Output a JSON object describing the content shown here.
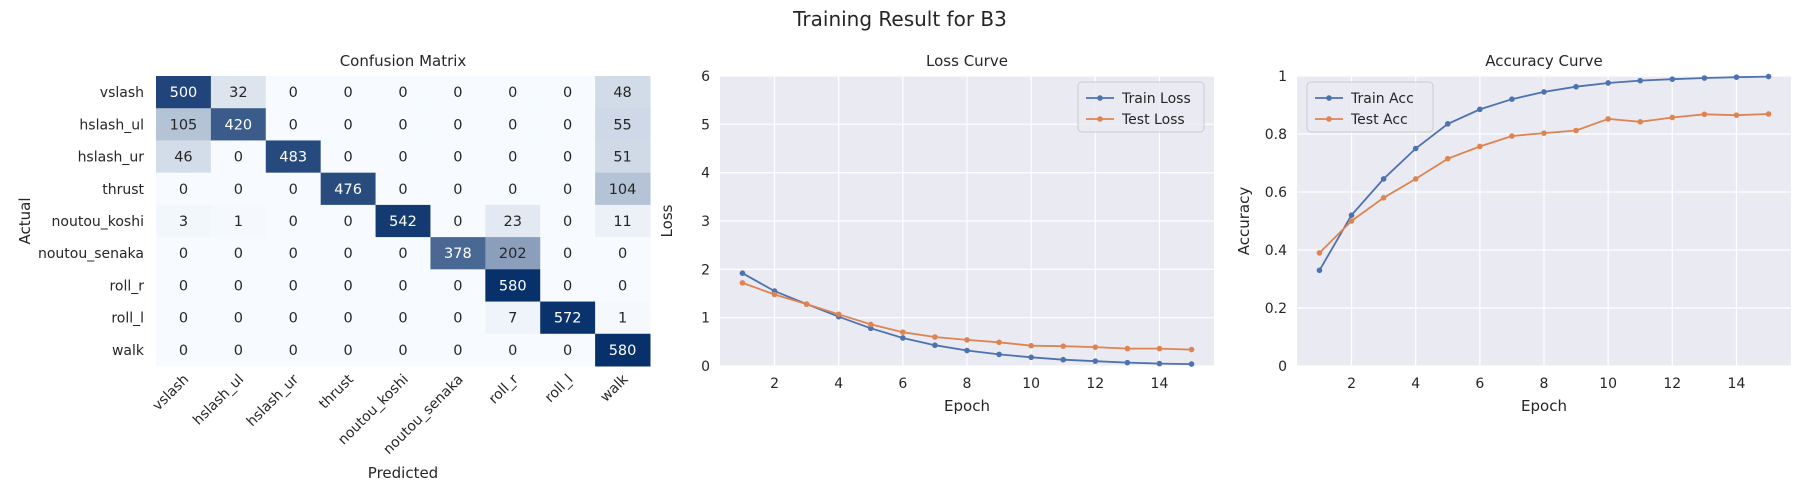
{
  "figure_title": "Training Result for B3",
  "chart_data": [
    {
      "type": "heatmap",
      "title": "Confusion Matrix",
      "xlabel": "Predicted",
      "ylabel": "Actual",
      "labels": [
        "vslash",
        "hslash_ul",
        "hslash_ur",
        "thrust",
        "noutou_koshi",
        "noutou_senaka",
        "roll_r",
        "roll_l",
        "walk"
      ],
      "matrix": [
        [
          500,
          32,
          0,
          0,
          0,
          0,
          0,
          0,
          48
        ],
        [
          105,
          420,
          0,
          0,
          0,
          0,
          0,
          0,
          55
        ],
        [
          46,
          0,
          483,
          0,
          0,
          0,
          0,
          0,
          51
        ],
        [
          0,
          0,
          0,
          476,
          0,
          0,
          0,
          0,
          104
        ],
        [
          3,
          1,
          0,
          0,
          542,
          0,
          23,
          0,
          11
        ],
        [
          0,
          0,
          0,
          0,
          0,
          378,
          202,
          0,
          0
        ],
        [
          0,
          0,
          0,
          0,
          0,
          0,
          580,
          0,
          0
        ],
        [
          0,
          0,
          0,
          0,
          0,
          0,
          7,
          572,
          1
        ],
        [
          0,
          0,
          0,
          0,
          0,
          0,
          0,
          0,
          580
        ]
      ],
      "colormap": "Blues",
      "colorbar": false
    },
    {
      "type": "line",
      "title": "Loss Curve",
      "xlabel": "Epoch",
      "ylabel": "Loss",
      "xlim": [
        0.3,
        15.7
      ],
      "ylim": [
        0,
        6
      ],
      "xticks": [
        2,
        4,
        6,
        8,
        10,
        12,
        14
      ],
      "yticks": [
        0,
        1,
        2,
        3,
        4,
        5,
        6
      ],
      "x": [
        1,
        2,
        3,
        4,
        5,
        6,
        7,
        8,
        9,
        10,
        11,
        12,
        13,
        14,
        15
      ],
      "legend_position": "top-right",
      "grid": true,
      "series": [
        {
          "name": "Train Loss",
          "color": "#4c72b0",
          "values": [
            1.92,
            1.55,
            1.28,
            1.02,
            0.78,
            0.58,
            0.43,
            0.32,
            0.24,
            0.18,
            0.13,
            0.1,
            0.07,
            0.05,
            0.04
          ]
        },
        {
          "name": "Test Loss",
          "color": "#dd8452",
          "values": [
            1.72,
            1.48,
            1.28,
            1.07,
            0.86,
            0.7,
            0.6,
            0.54,
            0.49,
            0.42,
            0.41,
            0.39,
            0.36,
            0.36,
            0.34
          ]
        }
      ]
    },
    {
      "type": "line",
      "title": "Accuracy Curve",
      "xlabel": "Epoch",
      "ylabel": "Accuracy",
      "xlim": [
        0.3,
        15.7
      ],
      "ylim": [
        0,
        1
      ],
      "xticks": [
        2,
        4,
        6,
        8,
        10,
        12,
        14
      ],
      "yticks": [
        0.0,
        0.2,
        0.4,
        0.6,
        0.8,
        1.0
      ],
      "x": [
        1,
        2,
        3,
        4,
        5,
        6,
        7,
        8,
        9,
        10,
        11,
        12,
        13,
        14,
        15
      ],
      "legend_position": "top-left",
      "grid": true,
      "series": [
        {
          "name": "Train Acc",
          "color": "#4c72b0",
          "values": [
            0.33,
            0.52,
            0.645,
            0.75,
            0.835,
            0.885,
            0.92,
            0.945,
            0.963,
            0.976,
            0.984,
            0.989,
            0.993,
            0.996,
            0.998
          ]
        },
        {
          "name": "Test Acc",
          "color": "#dd8452",
          "values": [
            0.39,
            0.5,
            0.58,
            0.645,
            0.715,
            0.757,
            0.793,
            0.803,
            0.812,
            0.852,
            0.842,
            0.857,
            0.868,
            0.865,
            0.869
          ]
        }
      ]
    }
  ]
}
